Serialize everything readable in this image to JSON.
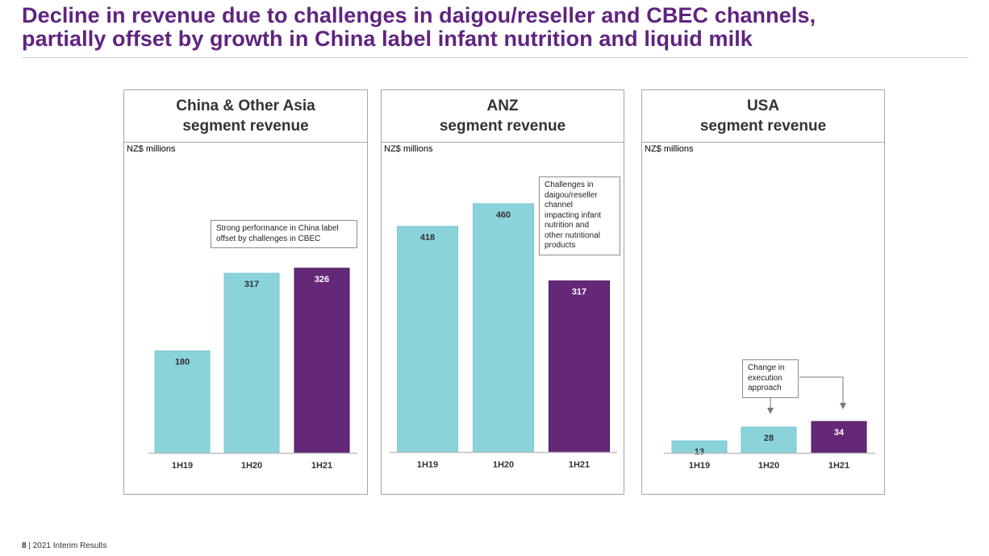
{
  "title_line1": "Decline in revenue due to challenges in daigou/reseller and CBEC channels,",
  "title_line2": "partially offset by growth in China label infant nutrition and liquid milk",
  "footer": {
    "page": "8",
    "separator": "|",
    "text": "2021 Interim Results"
  },
  "colors": {
    "prior": "#8ad3db",
    "current": "#652878",
    "title": "#5f2480"
  },
  "panels": [
    {
      "heading_line1": "China & Other Asia",
      "heading_line2": "segment revenue",
      "unit": "NZ$ millions",
      "note_lines": [
        "Strong performance in China label",
        "offset by challenges in CBEC"
      ]
    },
    {
      "heading_line1": "ANZ",
      "heading_line2": "segment revenue",
      "unit": "NZ$ millions",
      "note_lines": [
        "Challenges in",
        "daigou/reseller",
        "channel",
        "impacting infant",
        "nutrition and",
        "other nutritional",
        "products"
      ]
    },
    {
      "heading_line1": "USA",
      "heading_line2": "segment revenue",
      "unit": "NZ$ millions",
      "note_lines": [
        "Change in",
        "execution",
        "approach"
      ]
    }
  ],
  "chart_data": [
    {
      "type": "bar",
      "categories": [
        "1H19",
        "1H20",
        "1H21"
      ],
      "values": [
        180,
        317,
        326
      ],
      "title": "China & Other Asia segment revenue",
      "ylabel": "NZ$ millions"
    },
    {
      "type": "bar",
      "categories": [
        "1H19",
        "1H20",
        "1H21"
      ],
      "values": [
        418,
        460,
        317
      ],
      "title": "ANZ segment revenue",
      "ylabel": "NZ$ millions"
    },
    {
      "type": "bar",
      "categories": [
        "1H19",
        "1H20",
        "1H21"
      ],
      "values": [
        13,
        28,
        34
      ],
      "title": "USA segment revenue",
      "ylabel": "NZ$ millions"
    }
  ]
}
